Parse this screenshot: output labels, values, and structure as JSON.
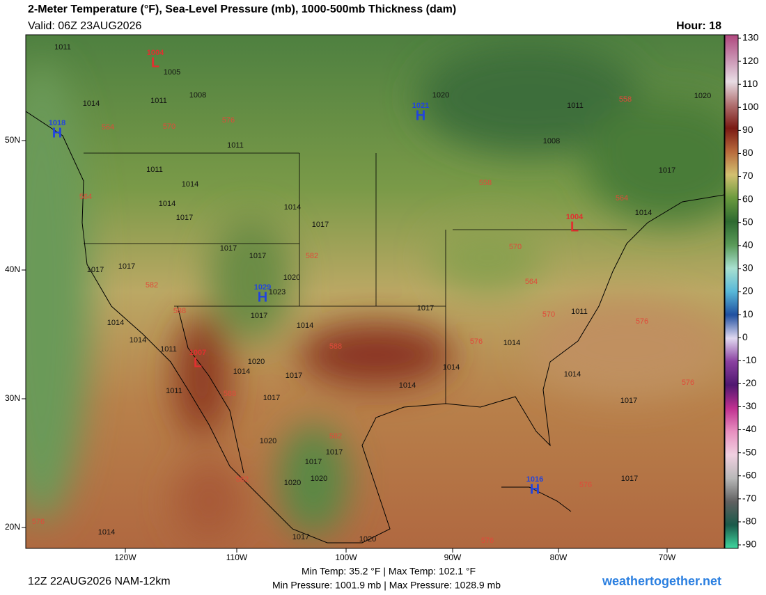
{
  "header": {
    "title": "2-Meter Temperature (°F), Sea-Level Pressure (mb), 1000-500mb Thickness (dam)",
    "valid": "Valid: 06Z 23AUG2026",
    "hour": "Hour: 18"
  },
  "map": {
    "lon_labels": [
      "120W",
      "110W",
      "100W",
      "90W",
      "80W",
      "70W"
    ],
    "lat_labels": [
      "50N",
      "40N",
      "30N",
      "20N"
    ],
    "centers": [
      {
        "type": "L",
        "pressure": 1004
      },
      {
        "type": "H",
        "pressure": 1018
      },
      {
        "type": "H",
        "pressure": 1021
      },
      {
        "type": "H",
        "pressure": 1029
      },
      {
        "type": "L",
        "pressure": 1007
      },
      {
        "type": "L",
        "pressure": 1004
      },
      {
        "type": "H",
        "pressure": 1016
      }
    ],
    "pressure_labels": [
      1011,
      1005,
      1008,
      1014,
      1011,
      1011,
      1011,
      1014,
      1014,
      1017,
      1014,
      1017,
      1017,
      1017,
      1017,
      1017,
      1020,
      1023,
      1014,
      1014,
      1011,
      1017,
      1014,
      1020,
      1014,
      1017,
      1014,
      1017,
      1014,
      1014,
      1011,
      1014,
      1017,
      1017,
      1020,
      1011,
      1008,
      1017,
      1014,
      1020,
      1017,
      1020,
      1017,
      1017,
      1020,
      1020,
      1017,
      1020,
      1014,
      1011
    ],
    "thickness_labels": [
      564,
      570,
      576,
      558,
      564,
      570,
      564,
      570,
      576,
      576,
      576,
      582,
      582,
      588,
      588,
      588,
      582,
      582,
      576,
      576,
      576,
      558,
      564
    ]
  },
  "colorbar": {
    "ticks": [
      130,
      120,
      110,
      100,
      90,
      80,
      70,
      60,
      50,
      40,
      30,
      20,
      10,
      0,
      -10,
      -20,
      -30,
      -40,
      -50,
      -60,
      -70,
      -80,
      -90
    ],
    "colors": [
      "#b0467e",
      "#c890b0",
      "#e8dce4",
      "#b07070",
      "#7a1a14",
      "#b86a3c",
      "#d2c070",
      "#6a9a3e",
      "#2e6a30",
      "#5a9a58",
      "#a8e0d0",
      "#58b8d8",
      "#2050a0",
      "#e0d8f0",
      "#8a40a0",
      "#501870",
      "#c03090",
      "#e890c0",
      "#f0d0e0",
      "#b8b8b8",
      "#606060",
      "#1a5a4a",
      "#40d8a0"
    ]
  },
  "footer": {
    "run": "12Z 22AUG2026 NAM-12km",
    "temps": "Min Temp:  35.2 °F | Max Temp: 102.1 °F",
    "pressures": "Min Pressure: 1001.9 mb | Max Pressure: 1028.9 mb",
    "site": "weathertogether.net"
  }
}
